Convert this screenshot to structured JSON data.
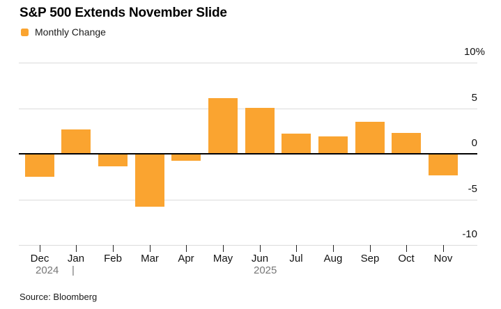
{
  "title": "S&P 500 Extends November Slide",
  "legend": {
    "label": "Monthly Change",
    "swatch_color": "#FAA430"
  },
  "chart_data": {
    "type": "bar",
    "title": "S&P 500 Extends November Slide",
    "series_name": "Monthly Change",
    "categories": [
      "Dec",
      "Jan",
      "Feb",
      "Mar",
      "Apr",
      "May",
      "Jun",
      "Jul",
      "Aug",
      "Sep",
      "Oct",
      "Nov"
    ],
    "values": [
      -2.5,
      2.7,
      -1.4,
      -5.8,
      -0.8,
      6.1,
      5.0,
      2.2,
      1.9,
      3.5,
      2.3,
      -2.4
    ],
    "unit": "%",
    "bar_color": "#FAA430",
    "ylim": [
      -10,
      10
    ],
    "yticks": [
      10,
      5,
      0,
      -5,
      -10
    ],
    "ytick_labels": [
      "10%",
      "5",
      "0",
      "-5",
      "-10"
    ],
    "grid": true,
    "legend_position": "top-left",
    "year_row": {
      "left_year": "2024",
      "divider": "|",
      "right_year": "2025"
    }
  },
  "source": "Source: Bloomberg"
}
